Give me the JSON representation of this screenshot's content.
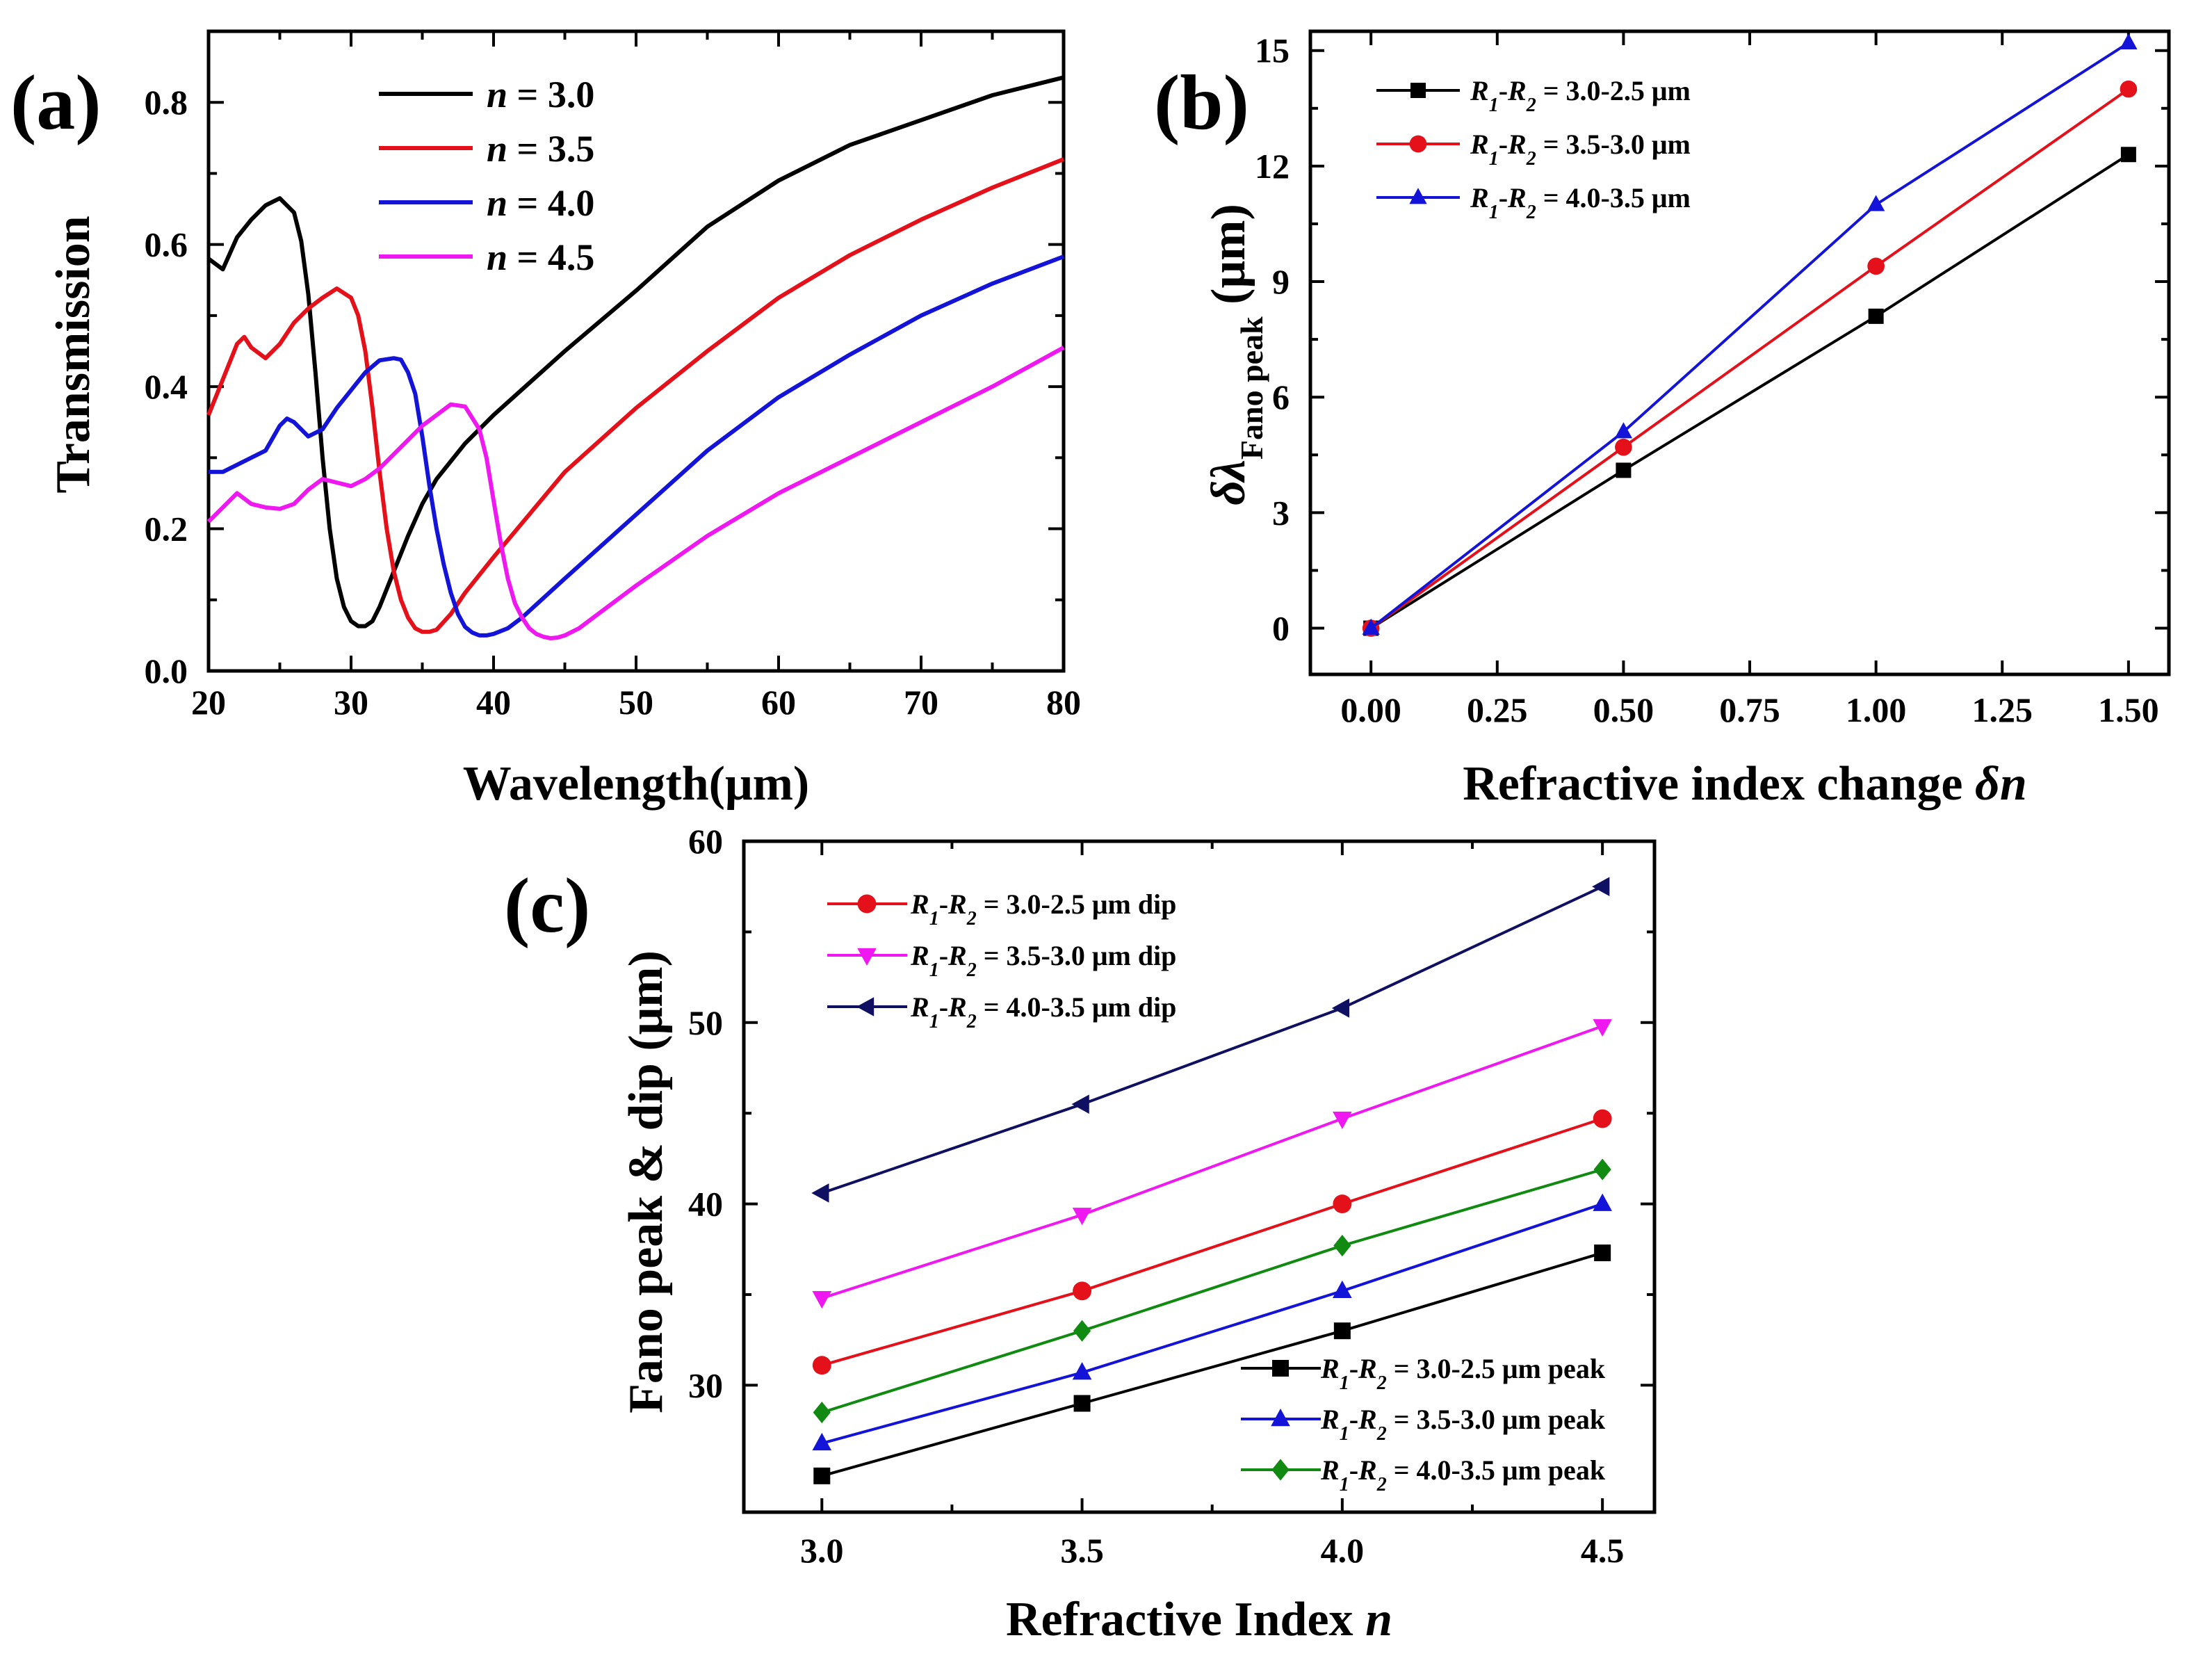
{
  "figure": {
    "panels": [
      "(a)",
      "(b)",
      "(c)"
    ]
  },
  "colors": {
    "black": "#000000",
    "red": "#e4101a",
    "blue": "#1414d8",
    "magenta": "#f018f0",
    "navy": "#101062",
    "green": "#108a10"
  },
  "chart_data": [
    {
      "id": "a",
      "type": "line",
      "panel_label": "(a)",
      "xlabel": "Wavelength(μm)",
      "ylabel": "Transmission",
      "xlim": [
        20,
        80
      ],
      "ylim": [
        0,
        0.9
      ],
      "xticks": [
        "20",
        "30",
        "40",
        "50",
        "60",
        "70",
        "80"
      ],
      "yticks": [
        "0.0",
        "0.2",
        "0.4",
        "0.6",
        "0.8"
      ],
      "xtick_values": [
        20,
        30,
        40,
        50,
        60,
        70,
        80
      ],
      "ytick_values": [
        0,
        0.2,
        0.4,
        0.6,
        0.8
      ],
      "legend_position": "top-left",
      "series": [
        {
          "name": "n = 3.0",
          "legend_var": "n",
          "legend_rest": " = 3.0",
          "color": "#000000",
          "x": [
            20,
            21,
            22,
            23,
            24,
            25,
            26,
            26.5,
            27,
            27.5,
            28,
            28.5,
            29,
            29.5,
            30,
            30.5,
            31,
            31.5,
            32,
            33,
            34,
            35,
            36,
            38,
            40,
            45,
            50,
            55,
            60,
            65,
            70,
            75,
            80
          ],
          "y": [
            0.58,
            0.565,
            0.61,
            0.635,
            0.655,
            0.665,
            0.645,
            0.605,
            0.53,
            0.42,
            0.3,
            0.2,
            0.13,
            0.09,
            0.07,
            0.063,
            0.063,
            0.07,
            0.09,
            0.14,
            0.19,
            0.235,
            0.27,
            0.32,
            0.36,
            0.45,
            0.535,
            0.625,
            0.69,
            0.74,
            0.775,
            0.81,
            0.835
          ]
        },
        {
          "name": "n = 3.5",
          "legend_var": "n",
          "legend_rest": " = 3.5",
          "color": "#e4101a",
          "x": [
            20,
            21,
            22,
            22.5,
            23,
            24,
            25,
            26,
            27,
            28,
            29,
            30,
            30.5,
            31,
            31.5,
            32,
            32.5,
            33,
            33.5,
            34,
            34.5,
            35,
            35.5,
            36,
            37,
            38,
            40,
            45,
            50,
            55,
            60,
            65,
            70,
            75,
            80
          ],
          "y": [
            0.36,
            0.41,
            0.46,
            0.47,
            0.455,
            0.44,
            0.46,
            0.49,
            0.51,
            0.525,
            0.538,
            0.525,
            0.5,
            0.45,
            0.37,
            0.28,
            0.2,
            0.14,
            0.1,
            0.075,
            0.06,
            0.055,
            0.055,
            0.058,
            0.08,
            0.11,
            0.16,
            0.28,
            0.37,
            0.45,
            0.525,
            0.585,
            0.635,
            0.68,
            0.72
          ]
        },
        {
          "name": "n = 4.0",
          "legend_var": "n",
          "legend_rest": " = 4.0",
          "color": "#1414d8",
          "x": [
            20,
            21,
            22,
            23,
            24,
            25,
            25.5,
            26,
            27,
            28,
            29,
            30,
            31,
            32,
            33,
            33.5,
            34,
            34.5,
            35,
            35.5,
            36,
            36.5,
            37,
            37.5,
            38,
            38.5,
            39,
            39.5,
            40,
            41,
            42,
            45,
            50,
            55,
            60,
            65,
            70,
            75,
            80
          ],
          "y": [
            0.28,
            0.28,
            0.29,
            0.3,
            0.31,
            0.345,
            0.355,
            0.35,
            0.33,
            0.34,
            0.37,
            0.395,
            0.42,
            0.437,
            0.44,
            0.438,
            0.42,
            0.39,
            0.33,
            0.26,
            0.2,
            0.15,
            0.11,
            0.08,
            0.062,
            0.054,
            0.05,
            0.05,
            0.052,
            0.06,
            0.075,
            0.13,
            0.22,
            0.31,
            0.385,
            0.445,
            0.5,
            0.545,
            0.583
          ]
        },
        {
          "name": "n = 4.5",
          "legend_var": "n",
          "legend_rest": " = 4.5",
          "color": "#f018f0",
          "x": [
            20,
            21,
            22,
            23,
            24,
            25,
            26,
            27,
            28,
            29,
            30,
            31,
            32,
            33,
            34,
            35,
            36,
            37,
            38,
            39,
            39.5,
            40,
            40.5,
            41,
            41.5,
            42,
            42.5,
            43,
            43.5,
            44,
            44.5,
            45,
            46,
            47,
            50,
            55,
            60,
            65,
            70,
            75,
            80
          ],
          "y": [
            0.21,
            0.23,
            0.25,
            0.235,
            0.23,
            0.228,
            0.235,
            0.255,
            0.27,
            0.265,
            0.26,
            0.27,
            0.285,
            0.305,
            0.325,
            0.345,
            0.36,
            0.375,
            0.372,
            0.34,
            0.3,
            0.24,
            0.18,
            0.13,
            0.095,
            0.075,
            0.06,
            0.052,
            0.048,
            0.046,
            0.047,
            0.05,
            0.06,
            0.075,
            0.12,
            0.19,
            0.25,
            0.3,
            0.35,
            0.4,
            0.455
          ]
        }
      ]
    },
    {
      "id": "b",
      "type": "line",
      "panel_label": "(b)",
      "xlabel_main": "Refractive index change ",
      "xlabel_italic": "δn",
      "ylabel_main": "δλ",
      "ylabel_sub": "Fano peak",
      "ylabel_unit": " (μm)",
      "xlim": [
        -0.12,
        1.58
      ],
      "ylim": [
        -1.2,
        15.5
      ],
      "xticks": [
        "0.00",
        "0.25",
        "0.50",
        "0.75",
        "1.00",
        "1.25",
        "1.50"
      ],
      "yticks": [
        "0",
        "3",
        "6",
        "9",
        "12",
        "15"
      ],
      "xtick_values": [
        0,
        0.25,
        0.5,
        0.75,
        1.0,
        1.25,
        1.5
      ],
      "ytick_values": [
        0,
        3,
        6,
        9,
        12,
        15
      ],
      "legend_position": "top-left",
      "series": [
        {
          "name": "R1-R2 = 3.0-2.5 μm",
          "legend_pair": "3.0-2.5 μm",
          "legend_suffix": "",
          "color": "#000000",
          "marker": "square",
          "x": [
            0,
            0.5,
            1.0,
            1.5
          ],
          "y": [
            0,
            4.1,
            8.1,
            12.3
          ]
        },
        {
          "name": "R1-R2 = 3.5-3.0 μm",
          "legend_pair": "3.5-3.0 μm",
          "legend_suffix": "",
          "color": "#e4101a",
          "marker": "circle",
          "x": [
            0,
            0.5,
            1.0,
            1.5
          ],
          "y": [
            0,
            4.7,
            9.4,
            14.0
          ]
        },
        {
          "name": "R1-R2 = 4.0-3.5 μm",
          "legend_pair": "4.0-3.5 μm",
          "legend_suffix": "",
          "color": "#1414d8",
          "marker": "triangle-up",
          "x": [
            0,
            0.5,
            1.0,
            1.5
          ],
          "y": [
            0,
            5.1,
            11.0,
            15.2
          ]
        }
      ]
    },
    {
      "id": "c",
      "type": "line",
      "panel_label": "(c)",
      "xlabel_main": "Refractive Index ",
      "xlabel_italic": "n",
      "ylabel": "Fano peak & dip (μm)",
      "xlim": [
        2.85,
        4.6
      ],
      "ylim": [
        23,
        60
      ],
      "xticks": [
        "3.0",
        "3.5",
        "4.0",
        "4.5"
      ],
      "yticks": [
        "30",
        "40",
        "50",
        "60"
      ],
      "xtick_values": [
        3.0,
        3.5,
        4.0,
        4.5
      ],
      "ytick_values": [
        30,
        40,
        50,
        60
      ],
      "legends": [
        "top-left (dip series)",
        "bottom-right (peak series)"
      ],
      "series": [
        {
          "name": "R1-R2 = 3.0-2.5 μm dip",
          "legend_pair": "3.0-2.5 μm",
          "legend_suffix": " dip",
          "group": "dip",
          "color": "#e4101a",
          "marker": "circle",
          "x": [
            3.0,
            3.5,
            4.0,
            4.5
          ],
          "y": [
            31.1,
            35.2,
            40.0,
            44.7
          ]
        },
        {
          "name": "R1-R2 = 3.5-3.0 μm dip",
          "legend_pair": "3.5-3.0 μm",
          "legend_suffix": " dip",
          "group": "dip",
          "color": "#f018f0",
          "marker": "triangle-down",
          "x": [
            3.0,
            3.5,
            4.0,
            4.5
          ],
          "y": [
            34.8,
            39.4,
            44.7,
            49.8
          ]
        },
        {
          "name": "R1-R2 = 4.0-3.5 μm dip",
          "legend_pair": "4.0-3.5 μm",
          "legend_suffix": " dip",
          "group": "dip",
          "color": "#101062",
          "marker": "triangle-left",
          "x": [
            3.0,
            3.5,
            4.0,
            4.5
          ],
          "y": [
            40.6,
            45.5,
            50.8,
            57.5
          ]
        },
        {
          "name": "R1-R2 = 3.0-2.5 μm peak",
          "legend_pair": "3.0-2.5 μm",
          "legend_suffix": " peak",
          "group": "peak",
          "color": "#000000",
          "marker": "square",
          "x": [
            3.0,
            3.5,
            4.0,
            4.5
          ],
          "y": [
            25.0,
            29.0,
            33.0,
            37.3
          ]
        },
        {
          "name": "R1-R2 = 3.5-3.0 μm peak",
          "legend_pair": "3.5-3.0 μm",
          "legend_suffix": " peak",
          "group": "peak",
          "color": "#1414d8",
          "marker": "triangle-up",
          "x": [
            3.0,
            3.5,
            4.0,
            4.5
          ],
          "y": [
            26.8,
            30.7,
            35.2,
            40.0
          ]
        },
        {
          "name": "R1-R2 = 4.0-3.5 μm peak",
          "legend_pair": "4.0-3.5 μm",
          "legend_suffix": " peak",
          "group": "peak",
          "color": "#108a10",
          "marker": "diamond",
          "x": [
            3.0,
            3.5,
            4.0,
            4.5
          ],
          "y": [
            28.5,
            33.0,
            37.7,
            41.9
          ]
        }
      ]
    }
  ]
}
